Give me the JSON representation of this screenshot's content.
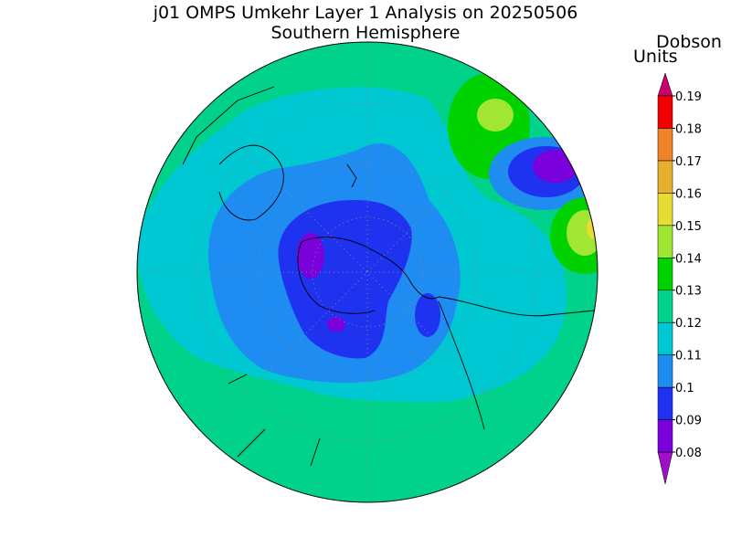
{
  "title": "j01 OMPS Umkehr Layer 1 Analysis on 20250506",
  "subtitle": "Southern Hemisphere",
  "colorbar": {
    "label": [
      "Dobson",
      "Units"
    ],
    "ticks": [
      0.08,
      0.09,
      0.1,
      0.11,
      0.12,
      0.13,
      0.14,
      0.15,
      0.16,
      0.17,
      0.18,
      0.19
    ],
    "colors": [
      "#a010c8",
      "#7a00dc",
      "#1e32f0",
      "#1e8cf0",
      "#00c8d2",
      "#00d28c",
      "#00d200",
      "#a0e632",
      "#e6dc32",
      "#e6af2d",
      "#f08228",
      "#f00000",
      "#c8006e"
    ]
  }
}
